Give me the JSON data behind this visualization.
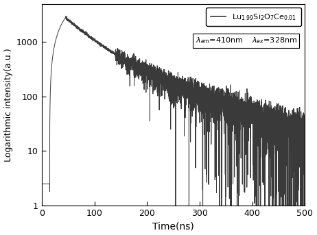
{
  "title": "",
  "xlabel": "Time(ns)",
  "ylabel": "Logarithmic intensity(a.u.)",
  "xlim": [
    0,
    500
  ],
  "ylim": [
    1,
    5000
  ],
  "xticks": [
    0,
    100,
    200,
    300,
    400,
    500
  ],
  "yticks": [
    1,
    10,
    100,
    1000
  ],
  "line_color": "#3a3a3a",
  "line_width": 0.7,
  "rise_start": 15,
  "rise_peak": 45,
  "peak_value": 2800,
  "decay_tau1": 45,
  "decay_tau2": 130,
  "decay_amp1": 0.75,
  "decay_amp2": 0.25,
  "noise_start_x": 140,
  "background": 2.5,
  "pre_spike_x": 15,
  "pre_spike_val": 1.8,
  "legend_line": "Lu$_{1.99}$Si$_2$O$_7$Ce$_{0.01}$",
  "annotation": "$\\lambda_{em}$=410nm    $\\lambda_{ex}$=328nm",
  "figsize": [
    4.62,
    3.43
  ],
  "dpi": 100
}
